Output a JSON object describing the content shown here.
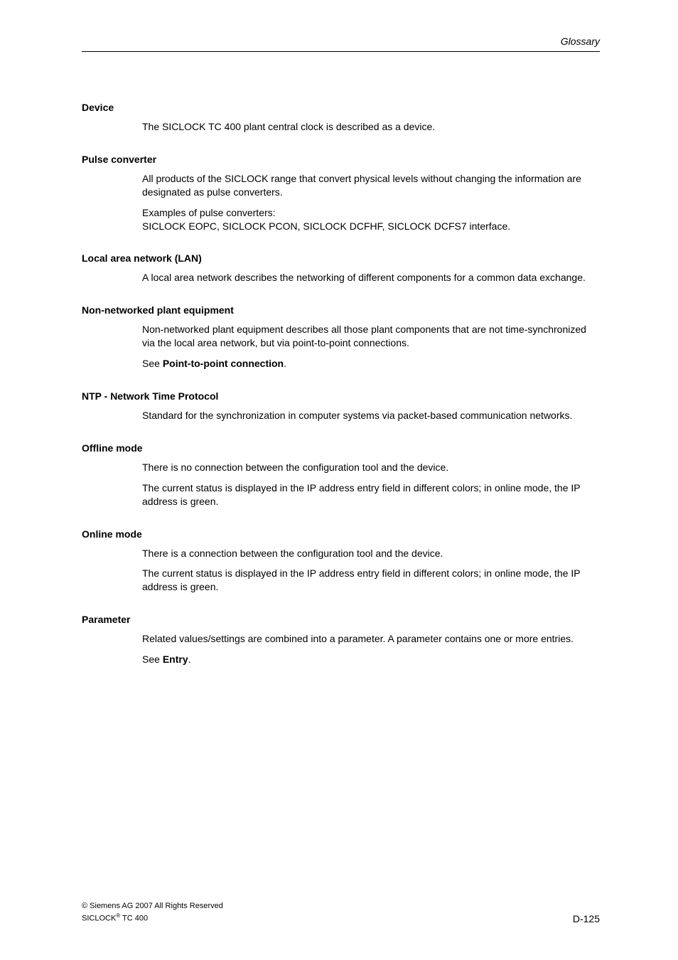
{
  "header": {
    "title": "Glossary"
  },
  "entries": [
    {
      "term": "Device",
      "paragraphs": [
        "The SICLOCK TC 400 plant central clock is described as a device."
      ]
    },
    {
      "term": "Pulse converter",
      "paragraphs": [
        "All products of the SICLOCK range that convert physical levels without changing the information are designated as pulse converters.",
        "Examples of pulse converters:\nSICLOCK EOPC, SICLOCK PCON, SICLOCK DCFHF, SICLOCK DCFS7 interface."
      ]
    },
    {
      "term": "Local area network (LAN)",
      "paragraphs": [
        "A local area network describes the networking of different components for a common data exchange."
      ]
    },
    {
      "term": "Non-networked plant equipment",
      "paragraphs": [
        "Non-networked plant equipment describes all those plant components that are not time-synchronized via the local area network, but via point-to-point connections.",
        "See <b>Point-to-point connection</b>."
      ]
    },
    {
      "term": "NTP - Network Time Protocol",
      "paragraphs": [
        "Standard for the synchronization in computer systems via packet-based communication networks."
      ]
    },
    {
      "term": "Offline mode",
      "paragraphs": [
        "There is no connection between the configuration tool and the device.",
        "The current status is displayed in the IP address entry field in different colors; in online mode, the IP address is green."
      ]
    },
    {
      "term": "Online mode",
      "paragraphs": [
        "There is a connection between the configuration tool and the device.",
        "The current status is displayed in the IP address entry field in different colors; in online mode, the IP address is green."
      ]
    },
    {
      "term": "Parameter",
      "paragraphs": [
        "Related values/settings are combined into a parameter. A parameter contains one or more entries.",
        "See <b>Entry</b>."
      ]
    }
  ],
  "footer": {
    "copyright_prefix": "© Siemens AG 2007 All Rights Reserved",
    "product_line1": "SICLOCK",
    "product_sup": "®",
    "product_line2": " TC 400",
    "page_number": "D-125"
  }
}
